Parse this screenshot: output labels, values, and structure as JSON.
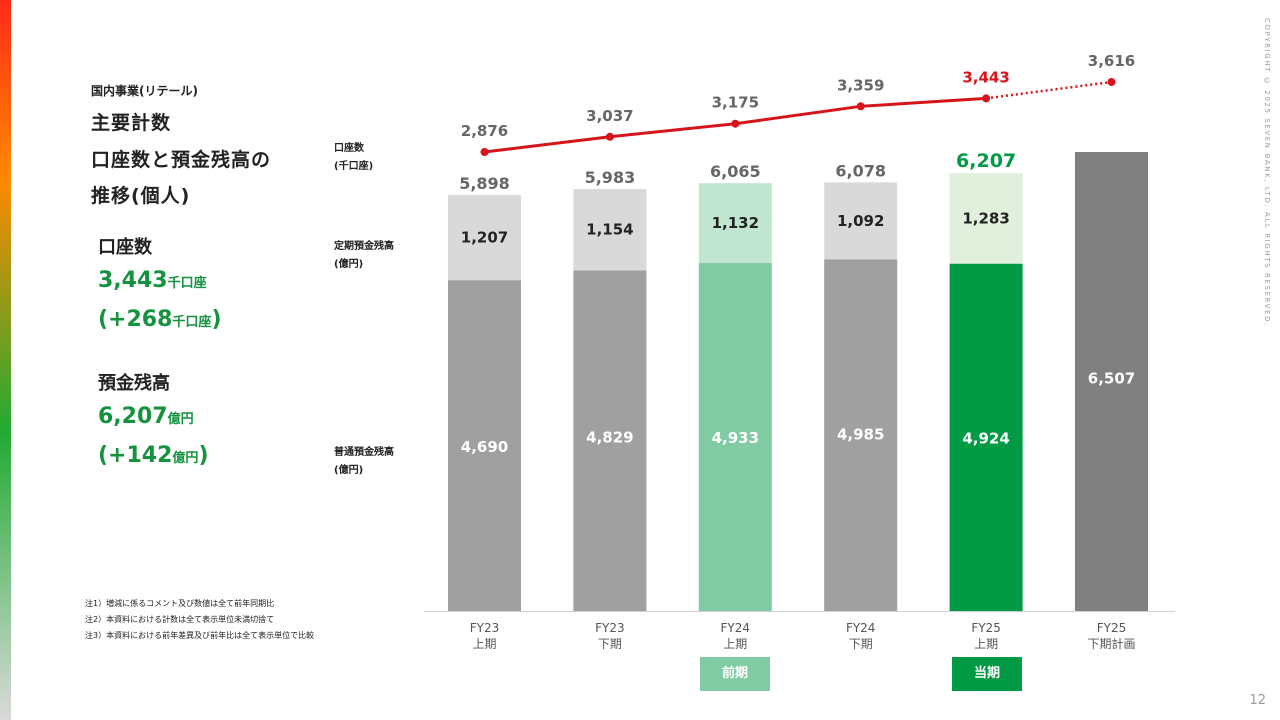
{
  "copyright": "COPYRIGHT © 2025 SEVEN BANK, LTD. ALL RIGHTS RESERVED.",
  "page_number": "12",
  "left_panel": {
    "section": "国内事業(リテール)",
    "title_lines": [
      "主要計数",
      "口座数と預金残高の",
      "推移(個人)"
    ],
    "accounts_label": "口座数",
    "accounts_value": "3,443",
    "accounts_unit": "千口座",
    "accounts_change_open": "(+268",
    "accounts_change_unit": "千口座",
    "accounts_change_close": ")",
    "deposit_label": "預金残高",
    "deposit_value": "6,207",
    "deposit_unit": "億円",
    "deposit_change_open": "(+142",
    "deposit_change_unit": "億円",
    "deposit_change_close": ")"
  },
  "legend_labels": {
    "accounts": [
      "口座数",
      "(千口座)"
    ],
    "time_deposit": [
      "定期預金残高",
      "(億円)"
    ],
    "ordinary_deposit": [
      "普通預金残高",
      "(億円)"
    ]
  },
  "notes": [
    "注1）増減に係るコメント及び数値は全て前年同期比",
    "注2）本資料における計数は全て表示単位未満切捨て",
    "注3）本資料における前年差異及び前年比は全て表示単位で比較"
  ],
  "badges": {
    "previous": "前期",
    "current": "当期"
  },
  "colors": {
    "ordinary_gray": "#a0a0a0",
    "time_gray": "#d9d9d9",
    "prev_ordinary": "#80cba4",
    "prev_time": "#c0e6d2",
    "cur_ordinary": "#009a44",
    "cur_time": "#e0f0dc",
    "plan_bar": "#808080",
    "line_red": "#d7141a",
    "prev_badge": "#80cba4",
    "cur_badge": "#009a44"
  },
  "chart_data": {
    "type": "bar",
    "stacked": true,
    "categories": [
      [
        "FY23",
        "上期"
      ],
      [
        "FY23",
        "下期"
      ],
      [
        "FY24",
        "上期"
      ],
      [
        "FY24",
        "下期"
      ],
      [
        "FY25",
        "上期"
      ],
      [
        "FY25",
        "下期計画"
      ]
    ],
    "series": [
      {
        "name": "普通預金残高",
        "values": [
          4690,
          4829,
          4933,
          4985,
          4924,
          null
        ]
      },
      {
        "name": "定期預金残高",
        "values": [
          1207,
          1154,
          1132,
          1092,
          1283,
          null
        ]
      }
    ],
    "plan_total": [
      null,
      null,
      null,
      null,
      null,
      6507
    ],
    "totals": [
      "5,898",
      "5,983",
      "6,065",
      "6,078",
      "6,207",
      ""
    ],
    "ordinary_labels": [
      "4,690",
      "4,829",
      "4,933",
      "4,985",
      "4,924",
      ""
    ],
    "time_labels": [
      "1,207",
      "1,154",
      "1,132",
      "1,092",
      "1,283",
      ""
    ],
    "plan_label": "6,507",
    "line": {
      "name": "口座数",
      "values": [
        2876,
        3037,
        3175,
        3359,
        3443,
        3616
      ],
      "labels": [
        "2,876",
        "3,037",
        "3,175",
        "3,359",
        "3,443",
        "3,616"
      ],
      "highlight_index": 4,
      "dotted_from_index": 4
    },
    "ylim": [
      0,
      7000
    ],
    "highlight": {
      "previous_index": 2,
      "current_index": 4
    }
  }
}
